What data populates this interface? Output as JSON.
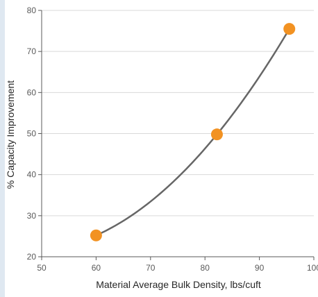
{
  "chart_data": {
    "type": "scatter",
    "title": "",
    "xlabel": "Material Average Bulk Density, lbs/cuft",
    "ylabel": "% Capacity Improvement",
    "xlim": [
      50,
      100
    ],
    "ylim": [
      20,
      80
    ],
    "x_ticks": [
      50,
      60,
      70,
      80,
      90,
      100
    ],
    "y_ticks": [
      20,
      30,
      40,
      50,
      60,
      70,
      80
    ],
    "grid": "horizontal",
    "legend": "none",
    "series": [
      {
        "points": [
          {
            "x": 60,
            "y": 25.2
          },
          {
            "x": 82.2,
            "y": 49.8
          },
          {
            "x": 95.5,
            "y": 75.5
          }
        ],
        "marker_color": "#f29222",
        "trendline": "polynomial",
        "trendline_color": "#666666"
      }
    ],
    "colors": {
      "grid": "#d9d9d9",
      "axis": "#595959",
      "sidebar": "#dfe8f1"
    }
  }
}
